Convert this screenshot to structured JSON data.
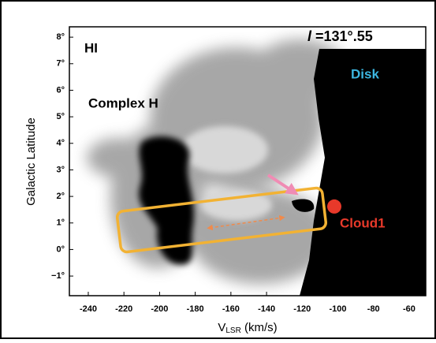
{
  "chart_data": {
    "type": "scatter",
    "annotations": {
      "hi": "HI",
      "longitude_symbol": "l",
      "longitude_value": " =131°.55",
      "disk": "Disk",
      "complex": "Complex H"
    },
    "x_label": {
      "main": "V",
      "sub": "LSR",
      "unit": " (km/s)"
    },
    "y_label": "Galactic Latitude",
    "xlim": [
      -250.6,
      -50.7
    ],
    "ylim": [
      -1.74,
      8.39
    ],
    "xticks": [
      -240,
      -220,
      -200,
      -180,
      -160,
      -140,
      -120,
      -100,
      -80,
      -60
    ],
    "yticks": [
      {
        "value": -1,
        "label": "−1°"
      },
      {
        "value": 0,
        "label": "0°"
      },
      {
        "value": 1,
        "label": "1°"
      },
      {
        "value": 2,
        "label": "2°"
      },
      {
        "value": 3,
        "label": "3°"
      },
      {
        "value": 4,
        "label": "4°"
      },
      {
        "value": 5,
        "label": "5°"
      },
      {
        "value": 6,
        "label": "6°"
      },
      {
        "value": 7,
        "label": "7°"
      },
      {
        "value": 8,
        "label": "8°"
      }
    ],
    "series": [
      {
        "name": "Cloud1",
        "color": "#e8392a",
        "x": [
          -102
        ],
        "values": [
          1.62
        ]
      }
    ]
  }
}
